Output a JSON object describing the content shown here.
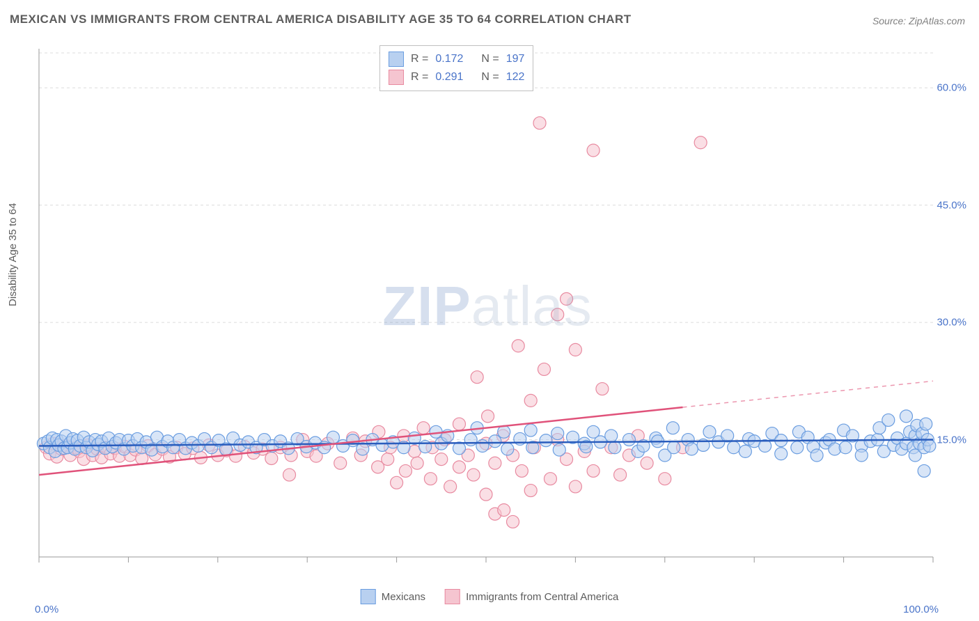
{
  "title": "MEXICAN VS IMMIGRANTS FROM CENTRAL AMERICA DISABILITY AGE 35 TO 64 CORRELATION CHART",
  "source": "Source: ZipAtlas.com",
  "y_axis_label": "Disability Age 35 to 64",
  "watermark": {
    "bold": "ZIP",
    "light": "atlas"
  },
  "chart": {
    "type": "scatter",
    "xlim": [
      0,
      100
    ],
    "ylim": [
      0,
      65
    ],
    "y_ticks": [
      15.0,
      30.0,
      45.0,
      60.0
    ],
    "y_tick_labels": [
      "15.0%",
      "30.0%",
      "45.0%",
      "60.0%"
    ],
    "x_tick_labels": [
      "0.0%",
      "100.0%"
    ],
    "background_color": "#ffffff",
    "grid_color": "#dcdcdc",
    "grid_dash": "4,4",
    "axis_color": "#9a9a9a",
    "marker_radius": 9,
    "marker_stroke_width": 1.2,
    "series": [
      {
        "name": "Mexicans",
        "fill": "#b8d0f0",
        "stroke": "#6a9de0",
        "fill_opacity": 0.55,
        "regression": {
          "y_at_x0": 14.2,
          "y_at_x100": 15.0,
          "solid_to_x": 100,
          "color": "#2a5dbd",
          "width": 2.5
        },
        "R": "0.172",
        "N": "197",
        "points": [
          [
            0.5,
            14.5
          ],
          [
            1,
            14.8
          ],
          [
            1.2,
            14.0
          ],
          [
            1.5,
            15.2
          ],
          [
            1.8,
            13.5
          ],
          [
            2,
            15.0
          ],
          [
            2.2,
            14.3
          ],
          [
            2.5,
            14.8
          ],
          [
            2.8,
            13.9
          ],
          [
            3,
            15.5
          ],
          [
            3.2,
            14.0
          ],
          [
            3.5,
            14.6
          ],
          [
            3.8,
            15.1
          ],
          [
            4,
            13.8
          ],
          [
            4.3,
            14.9
          ],
          [
            4.6,
            14.2
          ],
          [
            5,
            15.3
          ],
          [
            5.3,
            14.0
          ],
          [
            5.6,
            14.7
          ],
          [
            6,
            13.6
          ],
          [
            6.3,
            15.0
          ],
          [
            6.6,
            14.4
          ],
          [
            7,
            14.8
          ],
          [
            7.4,
            13.9
          ],
          [
            7.8,
            15.2
          ],
          [
            8.2,
            14.1
          ],
          [
            8.6,
            14.6
          ],
          [
            9,
            15.0
          ],
          [
            9.5,
            13.8
          ],
          [
            10,
            14.9
          ],
          [
            10.5,
            14.2
          ],
          [
            11,
            15.1
          ],
          [
            11.5,
            14.0
          ],
          [
            12,
            14.7
          ],
          [
            12.6,
            13.7
          ],
          [
            13.2,
            15.3
          ],
          [
            13.8,
            14.1
          ],
          [
            14.4,
            14.8
          ],
          [
            15,
            14.0
          ],
          [
            15.7,
            15.0
          ],
          [
            16.4,
            13.9
          ],
          [
            17.1,
            14.6
          ],
          [
            17.8,
            14.2
          ],
          [
            18.5,
            15.1
          ],
          [
            19.3,
            14.0
          ],
          [
            20.1,
            14.9
          ],
          [
            20.9,
            13.8
          ],
          [
            21.7,
            15.2
          ],
          [
            22.5,
            14.3
          ],
          [
            23.4,
            14.7
          ],
          [
            24.3,
            14.0
          ],
          [
            25.2,
            15.0
          ],
          [
            26.1,
            14.2
          ],
          [
            27,
            14.8
          ],
          [
            27.9,
            13.9
          ],
          [
            28.9,
            15.1
          ],
          [
            29.9,
            14.1
          ],
          [
            30.9,
            14.6
          ],
          [
            31.9,
            14.0
          ],
          [
            32.9,
            15.3
          ],
          [
            34,
            14.2
          ],
          [
            35.1,
            14.9
          ],
          [
            36.2,
            13.8
          ],
          [
            37.3,
            15.0
          ],
          [
            38.4,
            14.3
          ],
          [
            39.6,
            14.7
          ],
          [
            40.8,
            14.0
          ],
          [
            42,
            15.2
          ],
          [
            43.2,
            14.1
          ],
          [
            44.4,
            16.0
          ],
          [
            45,
            14.5
          ],
          [
            45.7,
            15.5
          ],
          [
            47,
            13.9
          ],
          [
            48.3,
            15.0
          ],
          [
            49,
            16.5
          ],
          [
            49.6,
            14.2
          ],
          [
            51,
            14.8
          ],
          [
            52,
            16.0
          ],
          [
            52.4,
            13.8
          ],
          [
            53.8,
            15.1
          ],
          [
            55,
            16.2
          ],
          [
            55.2,
            14.0
          ],
          [
            56.7,
            14.9
          ],
          [
            58,
            15.8
          ],
          [
            58.2,
            13.7
          ],
          [
            59.7,
            15.3
          ],
          [
            61,
            14.5
          ],
          [
            61.2,
            14.1
          ],
          [
            62,
            16.0
          ],
          [
            62.8,
            14.7
          ],
          [
            64,
            15.5
          ],
          [
            64.4,
            14.0
          ],
          [
            66,
            15.0
          ],
          [
            67,
            13.5
          ],
          [
            67.6,
            14.2
          ],
          [
            69,
            15.2
          ],
          [
            69.2,
            14.8
          ],
          [
            70,
            13.0
          ],
          [
            70.9,
            16.5
          ],
          [
            71,
            14.0
          ],
          [
            72.6,
            15.0
          ],
          [
            73,
            13.8
          ],
          [
            74.3,
            14.3
          ],
          [
            75,
            16.0
          ],
          [
            76,
            14.7
          ],
          [
            77,
            15.5
          ],
          [
            77.7,
            14.0
          ],
          [
            79,
            13.5
          ],
          [
            79.4,
            15.1
          ],
          [
            80,
            14.8
          ],
          [
            81.2,
            14.2
          ],
          [
            82,
            15.8
          ],
          [
            83,
            14.9
          ],
          [
            83,
            13.2
          ],
          [
            84.8,
            14.0
          ],
          [
            85,
            16.0
          ],
          [
            86,
            15.3
          ],
          [
            86.6,
            14.1
          ],
          [
            87,
            13.0
          ],
          [
            88,
            14.6
          ],
          [
            88.4,
            15.0
          ],
          [
            89,
            13.8
          ],
          [
            90,
            16.2
          ],
          [
            90.2,
            14.0
          ],
          [
            91,
            15.5
          ],
          [
            92,
            14.2
          ],
          [
            92,
            13.0
          ],
          [
            93,
            14.8
          ],
          [
            93.8,
            15.0
          ],
          [
            94,
            16.5
          ],
          [
            94.5,
            13.5
          ],
          [
            95,
            17.5
          ],
          [
            95.6,
            14.3
          ],
          [
            96,
            15.2
          ],
          [
            96.5,
            13.8
          ],
          [
            97,
            18.0
          ],
          [
            97,
            14.5
          ],
          [
            97.4,
            16.0
          ],
          [
            97.8,
            14.0
          ],
          [
            98,
            15.5
          ],
          [
            98,
            13.0
          ],
          [
            98.2,
            16.8
          ],
          [
            98.5,
            14.5
          ],
          [
            98.8,
            15.8
          ],
          [
            99,
            11.0
          ],
          [
            99,
            14.0
          ],
          [
            99.2,
            17.0
          ],
          [
            99.4,
            15.0
          ],
          [
            99.6,
            14.2
          ]
        ]
      },
      {
        "name": "Immigrants from Central America",
        "fill": "#f5c5d0",
        "stroke": "#e88aa0",
        "fill_opacity": 0.55,
        "regression": {
          "y_at_x0": 10.5,
          "y_at_x100": 22.5,
          "solid_to_x": 72,
          "color": "#e0527a",
          "width": 2.5
        },
        "R": "0.291",
        "N": "122",
        "points": [
          [
            0.8,
            14.0
          ],
          [
            1.2,
            13.2
          ],
          [
            1.6,
            14.5
          ],
          [
            2,
            12.8
          ],
          [
            2.5,
            13.8
          ],
          [
            3,
            14.2
          ],
          [
            3.5,
            13.0
          ],
          [
            4,
            14.0
          ],
          [
            4.5,
            13.5
          ],
          [
            5,
            12.5
          ],
          [
            5.5,
            14.3
          ],
          [
            6,
            13.0
          ],
          [
            6.5,
            13.8
          ],
          [
            7,
            12.7
          ],
          [
            7.5,
            14.0
          ],
          [
            8,
            13.2
          ],
          [
            8.5,
            13.9
          ],
          [
            9,
            12.9
          ],
          [
            9.6,
            14.1
          ],
          [
            10.2,
            13.0
          ],
          [
            10.8,
            13.7
          ],
          [
            11.5,
            12.6
          ],
          [
            12.2,
            14.2
          ],
          [
            13,
            13.1
          ],
          [
            13.8,
            13.8
          ],
          [
            14.6,
            12.8
          ],
          [
            15.4,
            14.0
          ],
          [
            16.3,
            13.2
          ],
          [
            17.2,
            13.9
          ],
          [
            18.1,
            12.7
          ],
          [
            19,
            14.3
          ],
          [
            20,
            13.0
          ],
          [
            21,
            13.6
          ],
          [
            22,
            12.9
          ],
          [
            23,
            14.1
          ],
          [
            24,
            13.3
          ],
          [
            25,
            13.8
          ],
          [
            26,
            12.6
          ],
          [
            27,
            14.0
          ],
          [
            28,
            10.5
          ],
          [
            28.2,
            13.0
          ],
          [
            29.5,
            15.0
          ],
          [
            30,
            13.5
          ],
          [
            31,
            12.9
          ],
          [
            32.3,
            14.5
          ],
          [
            33.7,
            12.0
          ],
          [
            35.1,
            15.2
          ],
          [
            36,
            13.0
          ],
          [
            36.5,
            14.8
          ],
          [
            37.9,
            11.5
          ],
          [
            38,
            16.0
          ],
          [
            39,
            12.5
          ],
          [
            39.3,
            14.0
          ],
          [
            40,
            9.5
          ],
          [
            40.8,
            15.5
          ],
          [
            41,
            11.0
          ],
          [
            42,
            13.5
          ],
          [
            42.3,
            12.0
          ],
          [
            43,
            16.5
          ],
          [
            43.8,
            10.0
          ],
          [
            44,
            14.0
          ],
          [
            45,
            12.5
          ],
          [
            45.4,
            15.0
          ],
          [
            46,
            9.0
          ],
          [
            47,
            11.5
          ],
          [
            47,
            17.0
          ],
          [
            48,
            13.0
          ],
          [
            48.6,
            10.5
          ],
          [
            49,
            23.0
          ],
          [
            50,
            8.0
          ],
          [
            50,
            14.5
          ],
          [
            50.2,
            18.0
          ],
          [
            51,
            12.0
          ],
          [
            51,
            5.5
          ],
          [
            51.9,
            15.5
          ],
          [
            52,
            6.0
          ],
          [
            53,
            13.0
          ],
          [
            53,
            4.5
          ],
          [
            53.6,
            27.0
          ],
          [
            54,
            11.0
          ],
          [
            55,
            8.5
          ],
          [
            55,
            20.0
          ],
          [
            55.4,
            14.0
          ],
          [
            56,
            55.5
          ],
          [
            56.5,
            24.0
          ],
          [
            57.2,
            10.0
          ],
          [
            58,
            15.0
          ],
          [
            58,
            31.0
          ],
          [
            59,
            12.5
          ],
          [
            59,
            33.0
          ],
          [
            60,
            9.0
          ],
          [
            60,
            26.5
          ],
          [
            61,
            13.5
          ],
          [
            62,
            11.0
          ],
          [
            62,
            52.0
          ],
          [
            63,
            21.5
          ],
          [
            64,
            14.0
          ],
          [
            65,
            10.5
          ],
          [
            66,
            13.0
          ],
          [
            67,
            15.5
          ],
          [
            68,
            12.0
          ],
          [
            70,
            10.0
          ],
          [
            72,
            14.0
          ],
          [
            74,
            53.0
          ]
        ]
      }
    ]
  },
  "stats_box": {
    "rows": [
      {
        "swatch_fill": "#b8d0f0",
        "swatch_stroke": "#6a9de0",
        "r_label": "R =",
        "r_value": "0.172",
        "n_label": "N =",
        "n_value": "197"
      },
      {
        "swatch_fill": "#f5c5d0",
        "swatch_stroke": "#e88aa0",
        "r_label": "R =",
        "r_value": "0.291",
        "n_label": "N =",
        "n_value": "122"
      }
    ]
  },
  "bottom_legend": [
    {
      "swatch_fill": "#b8d0f0",
      "swatch_stroke": "#6a9de0",
      "label": "Mexicans"
    },
    {
      "swatch_fill": "#f5c5d0",
      "swatch_stroke": "#e88aa0",
      "label": "Immigrants from Central America"
    }
  ]
}
